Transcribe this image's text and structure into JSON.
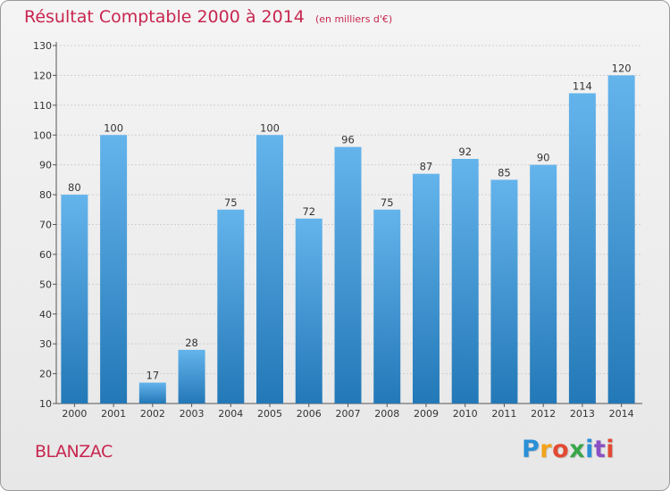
{
  "title": "Résultat Comptable 2000 à 2014",
  "subtitle": "(en milliers d'€)",
  "commune": "BLANZAC",
  "logo": {
    "text": "Proxiti",
    "letters": [
      "P",
      "r",
      "o",
      "x",
      "i",
      "t",
      "i"
    ],
    "colors": [
      "#2a8fd6",
      "#f3a21a",
      "#e24a33",
      "#3aa64a",
      "#2a8fd6",
      "#8a4fc4",
      "#e24a33"
    ]
  },
  "colors": {
    "accent": "#c8264f",
    "bar_top": "#64b4ec",
    "bar_bottom": "#2378b7",
    "gridline": "#cfcfcf"
  },
  "chart_data": {
    "type": "bar",
    "title": "Résultat Comptable 2000 à 2014",
    "subtitle": "(en milliers d'€)",
    "xlabel": "",
    "ylabel": "",
    "categories": [
      "2000",
      "2001",
      "2002",
      "2003",
      "2004",
      "2005",
      "2006",
      "2007",
      "2008",
      "2009",
      "2010",
      "2011",
      "2012",
      "2013",
      "2014"
    ],
    "values": [
      80,
      100,
      17,
      28,
      75,
      100,
      72,
      96,
      75,
      87,
      92,
      85,
      90,
      114,
      120
    ],
    "ylim": [
      10,
      130
    ],
    "yticks": [
      10,
      20,
      30,
      40,
      50,
      60,
      70,
      80,
      90,
      100,
      110,
      120,
      130
    ],
    "grid": true,
    "legend": "none"
  }
}
